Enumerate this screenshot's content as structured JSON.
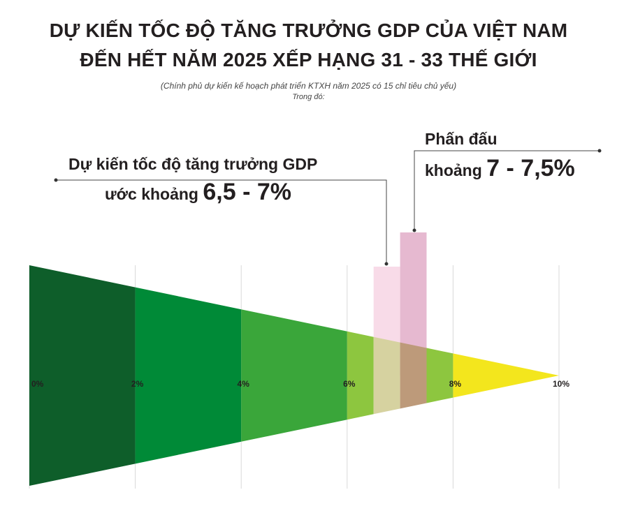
{
  "header": {
    "title_line1": "DỰ KIẾN TỐC ĐỘ TĂNG TRƯỞNG GDP CỦA VIỆT NAM",
    "title_line2": "ĐẾN HẾT NĂM 2025 XẾP HẠNG 31 - 33 THẾ GIỚI",
    "subtitle": "(Chính phủ dự kiến kế hoạch phát triển KTXH năm 2025 có 15 chỉ tiêu chủ yếu)",
    "subtitle2": "Trong đó:"
  },
  "annotations": {
    "gdp_forecast_label": "Dự kiến tốc độ tăng trưởng GDP",
    "gdp_forecast_prefix": "ước khoảng",
    "gdp_forecast_value": "6,5 - 7%",
    "target_label": "Phấn đấu",
    "target_prefix": "khoảng",
    "target_value": "7 - 7,5%"
  },
  "chart_data": {
    "type": "bar",
    "x_ticks": [
      "0%",
      "2%",
      "4%",
      "6%",
      "8%",
      "10%"
    ],
    "xlim": [
      0,
      10
    ],
    "grid": true,
    "bands": [
      {
        "from": 0,
        "to": 2,
        "color": "#0e5e2a"
      },
      {
        "from": 2,
        "to": 4,
        "color": "#008a37"
      },
      {
        "from": 4,
        "to": 6,
        "color": "#3aa63a"
      },
      {
        "from": 6,
        "to": 6.5,
        "color": "#8dc63f"
      },
      {
        "from": 6.5,
        "to": 7,
        "color": "#d6d2a0"
      },
      {
        "from": 7,
        "to": 7.5,
        "color": "#bd9a7a"
      },
      {
        "from": 7.5,
        "to": 8,
        "color": "#8dc63f"
      },
      {
        "from": 8,
        "to": 10,
        "color": "#f3e61d"
      }
    ],
    "ranges": [
      {
        "from": 6.5,
        "to": 7,
        "color": "#f8dbe8"
      },
      {
        "from": 7,
        "to": 7.5,
        "color": "#e6b9d0"
      }
    ]
  }
}
